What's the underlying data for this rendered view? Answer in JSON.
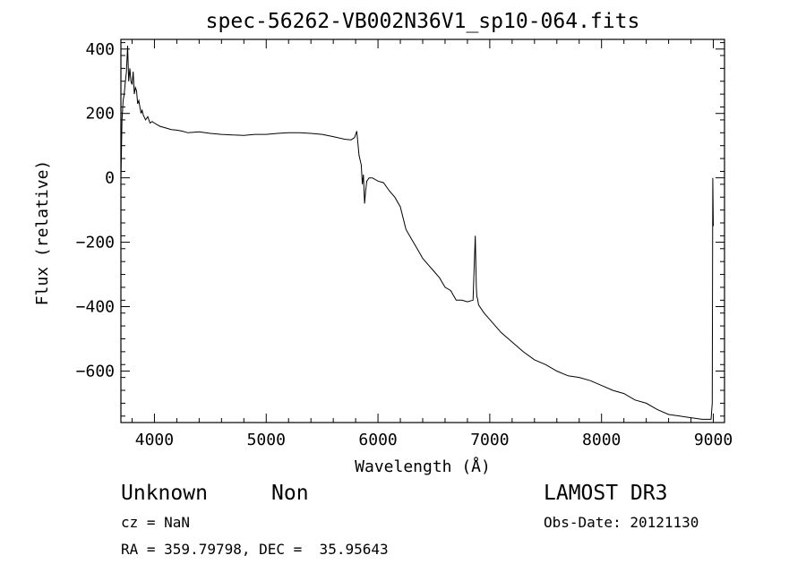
{
  "chart_data": {
    "type": "line",
    "title": "spec-56262-VB002N36V1_sp10-064.fits",
    "xlabel": "Wavelength (Å)",
    "ylabel": "Flux (relative)",
    "xlim": [
      3700,
      9100
    ],
    "ylim": [
      -760,
      430
    ],
    "xticks": [
      4000,
      5000,
      6000,
      7000,
      8000,
      9000
    ],
    "yticks": [
      400,
      200,
      0,
      -200,
      -400,
      -600
    ],
    "series": [
      {
        "name": "spectrum",
        "x": [
          3700,
          3705,
          3710,
          3720,
          3730,
          3740,
          3750,
          3760,
          3770,
          3780,
          3790,
          3800,
          3810,
          3820,
          3830,
          3840,
          3850,
          3860,
          3870,
          3880,
          3890,
          3900,
          3920,
          3940,
          3960,
          3980,
          4000,
          4050,
          4100,
          4150,
          4200,
          4250,
          4300,
          4400,
          4500,
          4600,
          4700,
          4800,
          4900,
          5000,
          5100,
          5200,
          5300,
          5400,
          5500,
          5600,
          5700,
          5760,
          5790,
          5810,
          5830,
          5850,
          5860,
          5870,
          5880,
          5890,
          5900,
          5920,
          5950,
          6000,
          6050,
          6100,
          6150,
          6200,
          6250,
          6300,
          6350,
          6400,
          6450,
          6500,
          6550,
          6600,
          6650,
          6700,
          6750,
          6800,
          6850,
          6870,
          6880,
          6885,
          6890,
          6900,
          6950,
          7000,
          7100,
          7200,
          7300,
          7400,
          7500,
          7600,
          7700,
          7800,
          7900,
          8000,
          8100,
          8200,
          8300,
          8400,
          8500,
          8600,
          8700,
          8800,
          8900,
          8980,
          8990,
          8995,
          9000
        ],
        "values": [
          0,
          80,
          180,
          240,
          260,
          300,
          330,
          410,
          300,
          340,
          300,
          290,
          330,
          260,
          280,
          270,
          230,
          240,
          220,
          200,
          210,
          195,
          180,
          190,
          170,
          175,
          170,
          160,
          155,
          150,
          148,
          145,
          140,
          143,
          138,
          135,
          133,
          132,
          135,
          135,
          138,
          140,
          140,
          138,
          135,
          128,
          120,
          118,
          125,
          145,
          70,
          40,
          -20,
          10,
          -80,
          -40,
          -10,
          0,
          0,
          -10,
          -15,
          -40,
          -60,
          -90,
          -160,
          -190,
          -220,
          -250,
          -270,
          -290,
          -310,
          -340,
          -350,
          -380,
          -380,
          -385,
          -380,
          -180,
          -340,
          -370,
          -375,
          -395,
          -420,
          -440,
          -480,
          -510,
          -540,
          -565,
          -580,
          -600,
          -615,
          -620,
          -630,
          -645,
          -660,
          -670,
          -690,
          -700,
          -720,
          -735,
          -740,
          -745,
          -750,
          -750,
          -700,
          0,
          -150
        ]
      }
    ]
  },
  "info": {
    "class": "Unknown",
    "subclass": "Non",
    "survey": "LAMOST DR3",
    "cz": "cz = NaN",
    "obs_date": "Obs-Date: 20121130",
    "coords": "RA = 359.79798, DEC =  35.95643"
  }
}
